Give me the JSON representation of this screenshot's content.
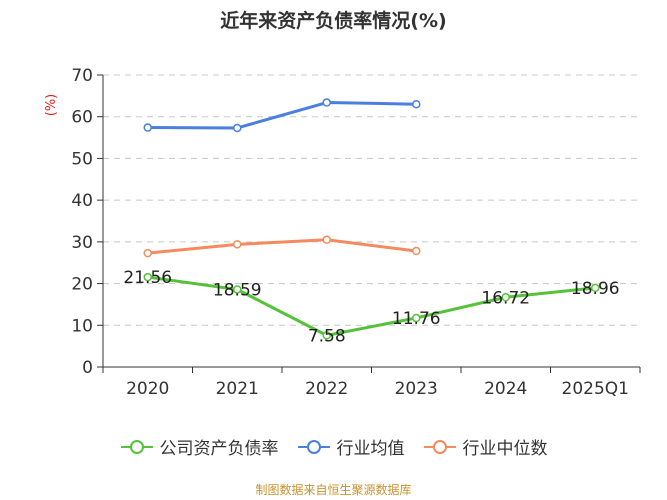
{
  "chart_data": {
    "type": "line",
    "title": "近年来资产负债率情况(%)",
    "ylabel": "(%)",
    "xlabel": "",
    "ylim": [
      0,
      70
    ],
    "yticks": [
      0,
      10,
      20,
      30,
      40,
      50,
      60,
      70
    ],
    "grid": true,
    "legend_position": "bottom",
    "categories": [
      "2020",
      "2021",
      "2022",
      "2023",
      "2024",
      "2025Q1"
    ],
    "series": [
      {
        "name": "公司资产负债率",
        "color": "#55c23a",
        "values": [
          21.56,
          18.59,
          7.58,
          11.76,
          16.72,
          18.96
        ],
        "labels": [
          "21.56",
          "18.59",
          "7.58",
          "11.76",
          "16.72",
          "18.96"
        ]
      },
      {
        "name": "行业均值",
        "color": "#4a7fe0",
        "values": [
          57.4,
          57.3,
          63.4,
          63.0,
          null,
          null
        ]
      },
      {
        "name": "行业中位数",
        "color": "#f48b5e",
        "values": [
          27.3,
          29.4,
          30.5,
          27.8,
          null,
          null
        ]
      }
    ]
  },
  "footer": {
    "source": "制图数据来自恒生聚源数据库"
  }
}
